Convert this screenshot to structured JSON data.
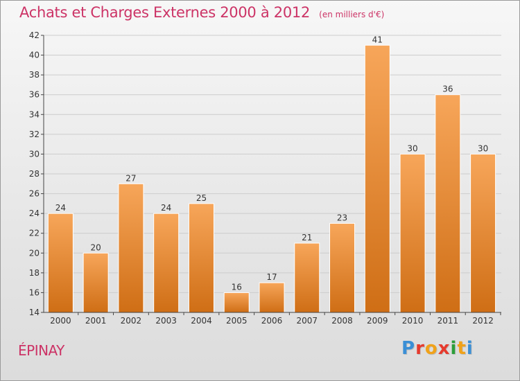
{
  "title": "Achats et Charges Externes 2000 à 2012",
  "subtitle": "(en milliers d'€)",
  "commune": "ÉPINAY",
  "brand": {
    "text": "Proxiti",
    "letter_colors": [
      "#3a8fd6",
      "#e63b2e",
      "#f0a21a",
      "#e63b2e",
      "#2c9e3a",
      "#f0a21a",
      "#3a8fd6"
    ]
  },
  "colors": {
    "title": "#cc3366",
    "bar_light": "#f7a65a",
    "bar_dark": "#cf6e15",
    "grid": "#cccccc",
    "axis": "#444444",
    "text": "#333333"
  },
  "chart_data": {
    "type": "bar",
    "categories": [
      "2000",
      "2001",
      "2002",
      "2003",
      "2004",
      "2005",
      "2006",
      "2007",
      "2008",
      "2009",
      "2010",
      "2011",
      "2012"
    ],
    "values": [
      24,
      20,
      27,
      24,
      25,
      16,
      17,
      21,
      23,
      41,
      30,
      36,
      30
    ],
    "ylim": [
      14,
      42
    ],
    "yticks": [
      14,
      16,
      18,
      20,
      22,
      24,
      26,
      28,
      30,
      32,
      34,
      36,
      38,
      40,
      42
    ],
    "xlabel": "",
    "ylabel": "",
    "grid": true,
    "legend": "none"
  }
}
